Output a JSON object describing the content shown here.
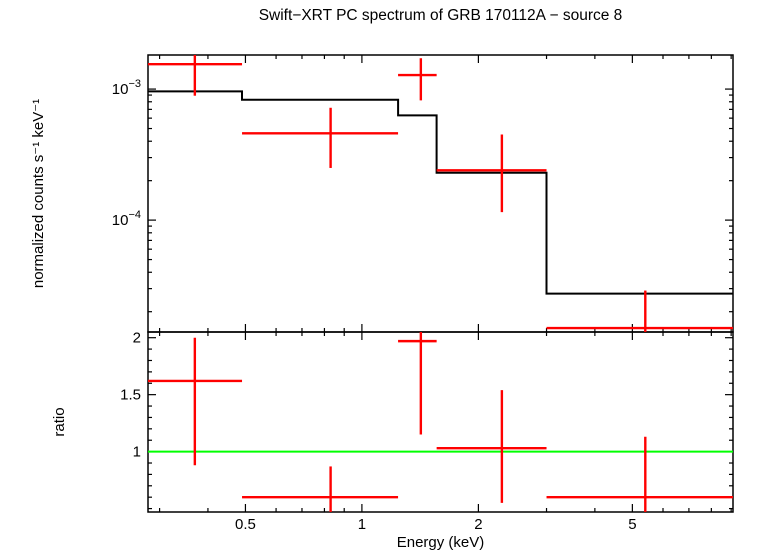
{
  "chart_data": {
    "type": "line",
    "title": "Swift−XRT PC spectrum of GRB 170112A − source 8",
    "xlabel": "Energy (keV)",
    "xscale": "log",
    "xlim": [
      0.28,
      9.1
    ],
    "xticks": [
      {
        "v": 0.5,
        "label": "0.5"
      },
      {
        "v": 1,
        "label": "1"
      },
      {
        "v": 2,
        "label": "2"
      },
      {
        "v": 5,
        "label": "5"
      }
    ],
    "colors": {
      "data": "#ff0000",
      "model": "#000000",
      "reference": "#00ff00",
      "frame": "#000000"
    },
    "legend": "none",
    "grid": false,
    "panels": [
      {
        "name": "spectrum",
        "ylabel": "normalized counts s⁻¹ keV⁻¹",
        "yscale": "log",
        "ylim": [
          1.4e-05,
          0.00182
        ],
        "yticks": [
          {
            "v": 0.001,
            "label": "10^−3"
          },
          {
            "v": 0.0001,
            "label": "10^−4"
          }
        ],
        "series": [
          {
            "name": "observed spectrum",
            "style": "cross",
            "color": "#ff0000",
            "points": [
              {
                "x": 0.37,
                "x_lo": 0.28,
                "x_hi": 0.49,
                "y": 0.00155,
                "y_lo": 0.00089,
                "y_hi": 0.0022
              },
              {
                "x": 0.83,
                "x_lo": 0.49,
                "x_hi": 1.24,
                "y": 0.00046,
                "y_lo": 0.00025,
                "y_hi": 0.00072
              },
              {
                "x": 1.42,
                "x_lo": 1.24,
                "x_hi": 1.56,
                "y": 0.00128,
                "y_lo": 0.00082,
                "y_hi": 0.00172
              },
              {
                "x": 2.3,
                "x_lo": 1.56,
                "x_hi": 3.0,
                "y": 0.00024,
                "y_lo": 0.000115,
                "y_hi": 0.00045
              },
              {
                "x": 5.4,
                "x_lo": 3.0,
                "x_hi": 9.1,
                "y": 1.5e-05,
                "y_lo": 1e-05,
                "y_hi": 2.9e-05
              }
            ]
          },
          {
            "name": "folded model",
            "style": "steps",
            "color": "#000000",
            "steps": [
              {
                "x0": 0.28,
                "x1": 0.49,
                "y": 0.00096
              },
              {
                "x0": 0.49,
                "x1": 1.24,
                "y": 0.00083
              },
              {
                "x0": 1.24,
                "x1": 1.56,
                "y": 0.00063
              },
              {
                "x0": 1.56,
                "x1": 3.0,
                "y": 0.00023
              },
              {
                "x0": 3.0,
                "x1": 9.1,
                "y": 2.75e-05
              }
            ]
          }
        ]
      },
      {
        "name": "ratio",
        "ylabel": "ratio",
        "yscale": "linear",
        "ylim": [
          0.47,
          2.05
        ],
        "yticks": [
          {
            "v": 1,
            "label": "1"
          },
          {
            "v": 1.5,
            "label": "1.5"
          },
          {
            "v": 2,
            "label": "2"
          }
        ],
        "reference_line": {
          "y": 1.0,
          "color": "#00ff00"
        },
        "series": [
          {
            "name": "data/model ratio",
            "style": "cross",
            "color": "#ff0000",
            "points": [
              {
                "x": 0.37,
                "x_lo": 0.28,
                "x_hi": 0.49,
                "y": 1.62,
                "y_lo": 0.88,
                "y_hi": 2.0
              },
              {
                "x": 0.83,
                "x_lo": 0.49,
                "x_hi": 1.24,
                "y": 0.6,
                "y_lo": 0.4,
                "y_hi": 0.87
              },
              {
                "x": 1.42,
                "x_lo": 1.24,
                "x_hi": 1.56,
                "y": 1.97,
                "y_lo": 1.15,
                "y_hi": 2.2
              },
              {
                "x": 2.3,
                "x_lo": 1.56,
                "x_hi": 3.0,
                "y": 1.03,
                "y_lo": 0.55,
                "y_hi": 1.54
              },
              {
                "x": 5.4,
                "x_lo": 3.0,
                "x_hi": 9.1,
                "y": 0.6,
                "y_lo": 0.4,
                "y_hi": 1.13
              }
            ]
          }
        ]
      }
    ]
  }
}
